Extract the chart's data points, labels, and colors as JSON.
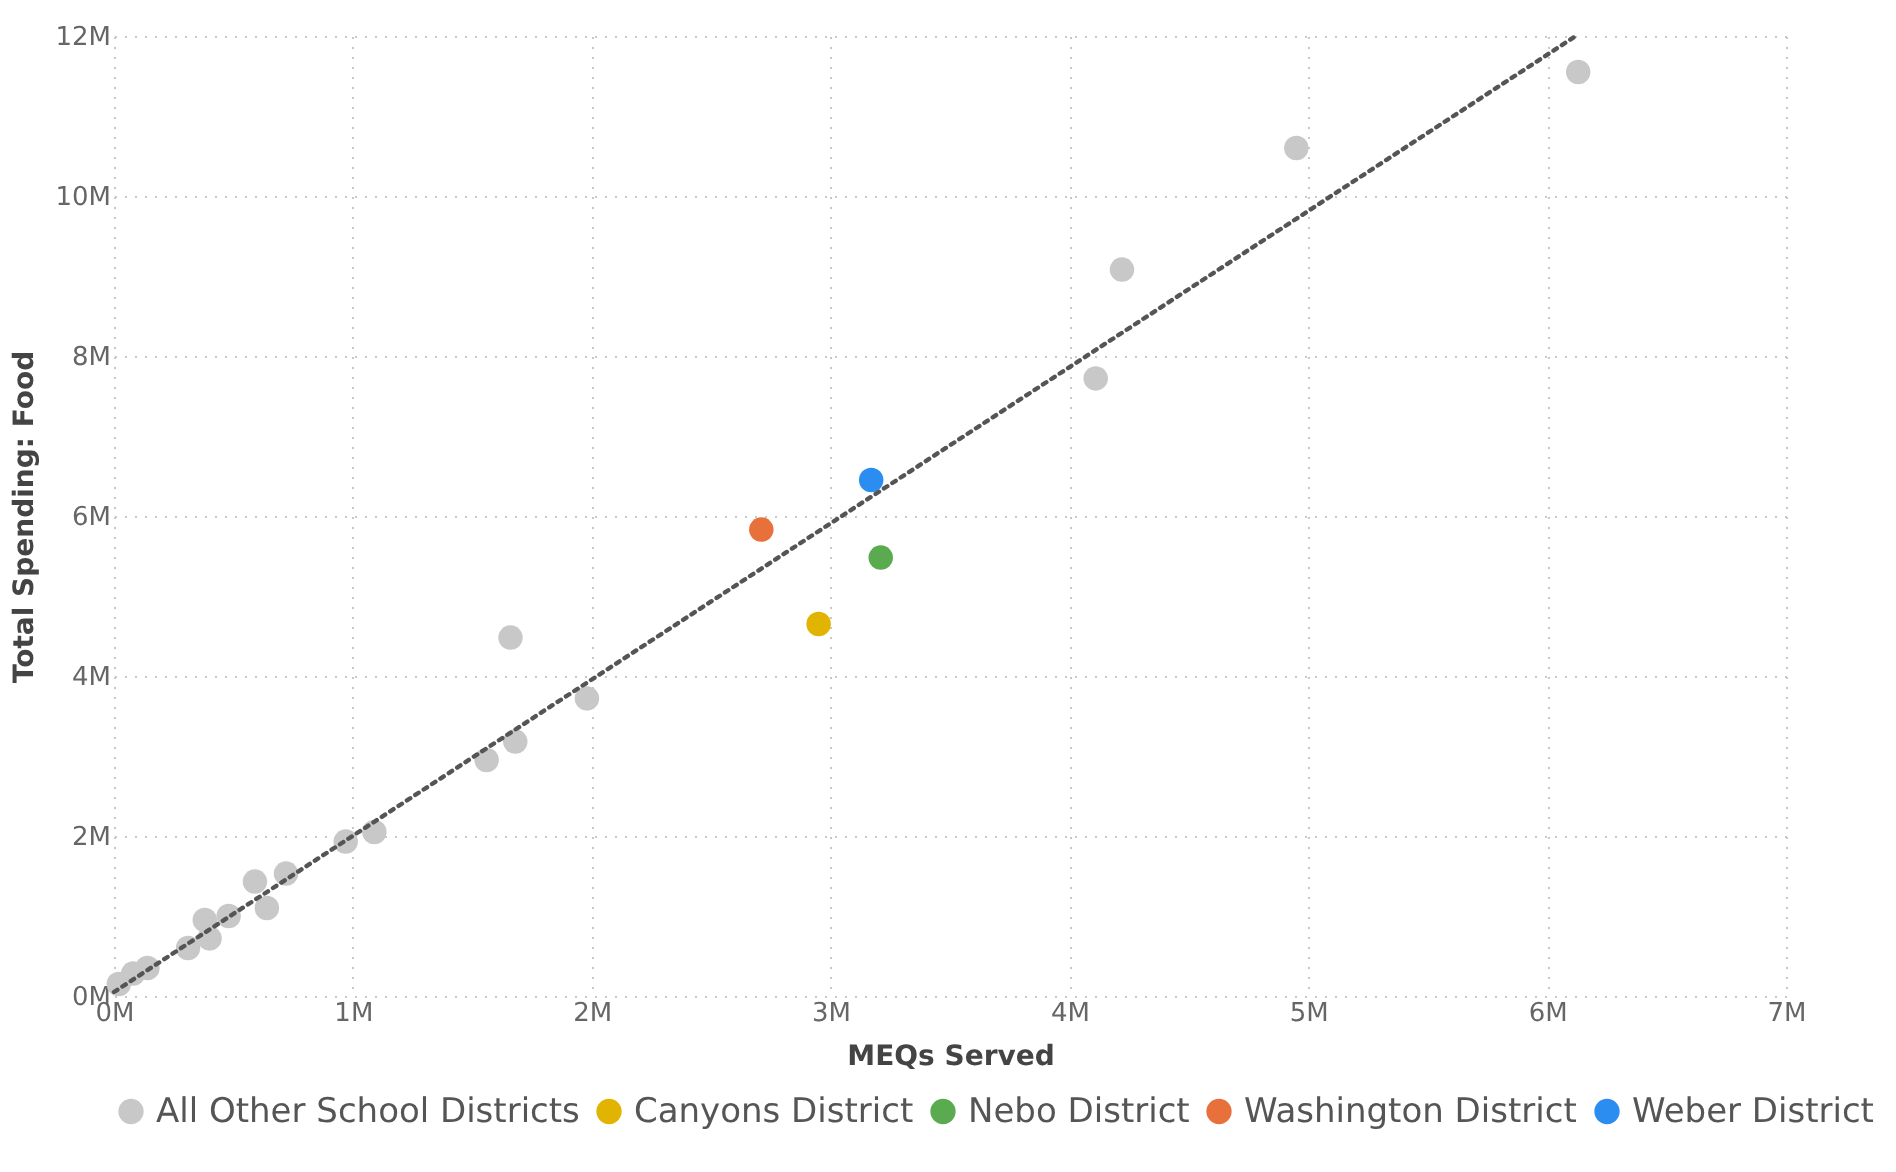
{
  "chart_data": {
    "type": "scatter",
    "xlabel": "MEQs Served",
    "ylabel": "Total Spending: Food",
    "xlim": [
      0,
      7000000
    ],
    "ylim": [
      0,
      12000000
    ],
    "xticks": [
      {
        "value": 0,
        "label": "0M"
      },
      {
        "value": 1000000,
        "label": "1M"
      },
      {
        "value": 2000000,
        "label": "2M"
      },
      {
        "value": 3000000,
        "label": "3M"
      },
      {
        "value": 4000000,
        "label": "4M"
      },
      {
        "value": 5000000,
        "label": "5M"
      },
      {
        "value": 6000000,
        "label": "6M"
      },
      {
        "value": 7000000,
        "label": "7M"
      }
    ],
    "yticks": [
      {
        "value": 0,
        "label": "0M"
      },
      {
        "value": 2000000,
        "label": "2M"
      },
      {
        "value": 4000000,
        "label": "4M"
      },
      {
        "value": 6000000,
        "label": "6M"
      },
      {
        "value": 8000000,
        "label": "8M"
      },
      {
        "value": 10000000,
        "label": "10M"
      },
      {
        "value": 12000000,
        "label": "12M"
      }
    ],
    "grid": true,
    "legend": "bottom",
    "marker": "circle",
    "series": [
      {
        "name": "All Other School Districts",
        "color": "#c8c8c8",
        "x": [
          6130000,
          4950000,
          4220000,
          4110000,
          1660000,
          1980000,
          1680000,
          1560000,
          1090000,
          970000,
          720000,
          590000,
          640000,
          480000,
          380000,
          400000,
          310000,
          140000,
          80000,
          20000
        ],
        "values": [
          11550000,
          10600000,
          9080000,
          7720000,
          4480000,
          3720000,
          3180000,
          2950000,
          2050000,
          1930000,
          1530000,
          1430000,
          1100000,
          1000000,
          950000,
          720000,
          600000,
          350000,
          280000,
          150000
        ]
      },
      {
        "name": "Canyons District",
        "color": "#e0b400",
        "x": [
          2950000
        ],
        "values": [
          4650000
        ]
      },
      {
        "name": "Nebo District",
        "color": "#5aab4f",
        "x": [
          3210000
        ],
        "values": [
          5480000
        ]
      },
      {
        "name": "Washington District",
        "color": "#e8703a",
        "x": [
          2710000
        ],
        "values": [
          5830000
        ]
      },
      {
        "name": "Weber District",
        "color": "#2b8df0",
        "x": [
          3170000
        ],
        "values": [
          6450000
        ]
      },
      {
        "type": "line",
        "color": "#555555",
        "line_style": "dotted",
        "marker": "none",
        "x": [
          0,
          6120000
        ],
        "values": [
          50000,
          12000000
        ]
      }
    ]
  }
}
